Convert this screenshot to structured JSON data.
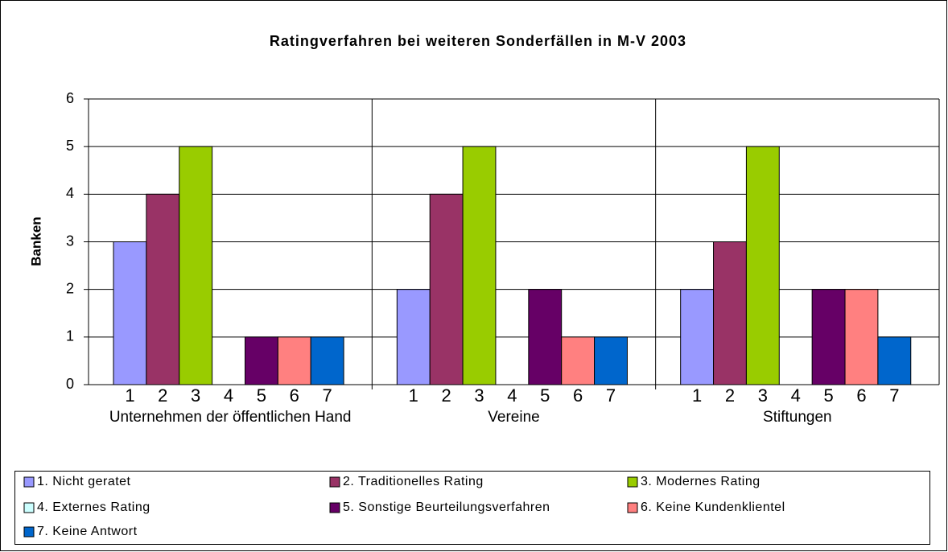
{
  "chart_data": {
    "type": "bar",
    "title": "Ratingverfahren bei weiteren Sonderfällen in M-V 2003",
    "y_label": "Banken",
    "categories": [
      "Unternehmen der öffentlichen Hand",
      "Vereine",
      "Stiftungen"
    ],
    "bar_labels": [
      "1",
      "2",
      "3",
      "4",
      "5",
      "6",
      "7"
    ],
    "series": [
      {
        "name": "1. Nicht geratet",
        "color": "#9999ff",
        "values": [
          3,
          2,
          2
        ]
      },
      {
        "name": "2. Traditionelles Rating",
        "color": "#993366",
        "values": [
          4,
          4,
          3
        ]
      },
      {
        "name": "3. Modernes Rating",
        "color": "#99cc00",
        "values": [
          5,
          5,
          5
        ]
      },
      {
        "name": "4. Externes Rating",
        "color": "#ccffff",
        "values": [
          0,
          0,
          0
        ]
      },
      {
        "name": "5. Sonstige Beurteilungsverfahren",
        "color": "#660066",
        "values": [
          1,
          2,
          2
        ]
      },
      {
        "name": "6. Keine Kundenklientel",
        "color": "#ff8080",
        "values": [
          1,
          1,
          2
        ]
      },
      {
        "name": "7. Keine Antwort",
        "color": "#0066cc",
        "values": [
          1,
          1,
          1
        ]
      }
    ],
    "ylim": [
      0,
      6
    ],
    "yticks": [
      0,
      1,
      2,
      3,
      4,
      5,
      6
    ],
    "grid": true,
    "legend": "bottom"
  }
}
